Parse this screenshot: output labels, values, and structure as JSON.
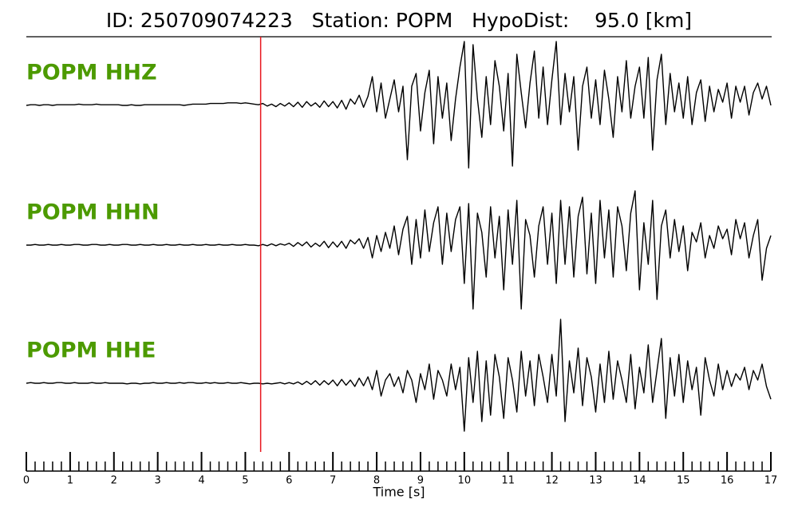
{
  "chart_data": {
    "type": "line",
    "title": "ID: 250709074223   Station: POPM   HypoDist:    95.0 [km]",
    "xlabel": "Time [s]",
    "x": [
      0,
      0.1,
      0.2,
      0.3,
      0.4,
      0.5,
      0.6,
      0.7,
      0.8,
      0.9,
      1,
      1.1,
      1.2,
      1.3,
      1.4,
      1.5,
      1.6,
      1.7,
      1.8,
      1.9,
      2,
      2.1,
      2.2,
      2.3,
      2.4,
      2.5,
      2.6,
      2.7,
      2.8,
      2.9,
      3,
      3.1,
      3.2,
      3.3,
      3.4,
      3.5,
      3.6,
      3.7,
      3.8,
      3.9,
      4,
      4.1,
      4.2,
      4.3,
      4.4,
      4.5,
      4.6,
      4.7,
      4.8,
      4.9,
      5,
      5.1,
      5.2,
      5.3,
      5.4,
      5.5,
      5.6,
      5.7,
      5.8,
      5.9,
      6,
      6.1,
      6.2,
      6.3,
      6.4,
      6.5,
      6.6,
      6.7,
      6.8,
      6.9,
      7,
      7.1,
      7.2,
      7.3,
      7.4,
      7.5,
      7.6,
      7.7,
      7.8,
      7.9,
      8,
      8.1,
      8.2,
      8.3,
      8.4,
      8.5,
      8.6,
      8.7,
      8.8,
      8.9,
      9,
      9.1,
      9.2,
      9.3,
      9.4,
      9.5,
      9.6,
      9.7,
      9.8,
      9.9,
      10,
      10.1,
      10.2,
      10.3,
      10.4,
      10.5,
      10.6,
      10.7,
      10.8,
      10.9,
      11,
      11.1,
      11.2,
      11.3,
      11.4,
      11.5,
      11.6,
      11.7,
      11.8,
      11.9,
      12,
      12.1,
      12.2,
      12.3,
      12.4,
      12.5,
      12.6,
      12.7,
      12.8,
      12.9,
      13,
      13.1,
      13.2,
      13.3,
      13.4,
      13.5,
      13.6,
      13.7,
      13.8,
      13.9,
      14,
      14.1,
      14.2,
      14.3,
      14.4,
      14.5,
      14.6,
      14.7,
      14.8,
      14.9,
      15,
      15.1,
      15.2,
      15.3,
      15.4,
      15.5,
      15.6,
      15.7,
      15.8,
      15.9,
      16,
      16.1,
      16.2,
      16.3,
      16.4,
      16.5,
      16.6,
      16.7,
      16.8,
      16.9,
      17
    ],
    "series": [
      {
        "name": "POPM HHZ",
        "color": "#000000",
        "label_color": "#4c9a00",
        "values": [
          0,
          0.01,
          0.01,
          0,
          0.01,
          0.01,
          0,
          0.01,
          0.01,
          0.01,
          0.01,
          0.01,
          0.02,
          0.01,
          0.01,
          0.01,
          0.02,
          0.01,
          0.01,
          0.01,
          0.01,
          0.01,
          0,
          0,
          0.01,
          0,
          0,
          0.01,
          0.01,
          0.01,
          0.01,
          0.01,
          0.01,
          0.01,
          0.01,
          0.01,
          0,
          0.01,
          0.02,
          0.02,
          0.02,
          0.02,
          0.03,
          0.03,
          0.03,
          0.03,
          0.04,
          0.04,
          0.04,
          0.03,
          0.04,
          0.03,
          0.02,
          0.01,
          0.03,
          -0.01,
          0.02,
          -0.02,
          0.03,
          -0.01,
          0.04,
          -0.02,
          0.05,
          -0.03,
          0.06,
          -0.01,
          0.04,
          -0.03,
          0.07,
          -0.02,
          0.06,
          -0.04,
          0.08,
          -0.06,
          0.1,
          0.02,
          0.16,
          -0.03,
          0.14,
          0.45,
          -0.1,
          0.35,
          -0.2,
          0.1,
          0.4,
          -0.1,
          0.3,
          -0.85,
          0.3,
          0.5,
          -0.4,
          0.2,
          0.55,
          -0.6,
          0.45,
          -0.2,
          0.35,
          -0.55,
          0.1,
          0.6,
          1.0,
          -0.98,
          0.95,
          0.1,
          -0.5,
          0.45,
          -0.3,
          0.7,
          0.3,
          -0.4,
          0.5,
          -0.95,
          0.8,
          0.2,
          -0.35,
          0.35,
          0.85,
          -0.2,
          0.6,
          -0.3,
          0.4,
          1.0,
          -0.3,
          0.5,
          -0.1,
          0.45,
          -0.7,
          0.3,
          0.6,
          -0.2,
          0.4,
          -0.3,
          0.55,
          0.1,
          -0.5,
          0.45,
          -0.1,
          0.7,
          -0.2,
          0.3,
          0.6,
          -0.2,
          0.75,
          -0.7,
          0.4,
          0.8,
          -0.3,
          0.5,
          -0.1,
          0.35,
          -0.2,
          0.45,
          -0.3,
          0.2,
          0.4,
          -0.25,
          0.3,
          -0.1,
          0.25,
          0.05,
          0.35,
          -0.2,
          0.3,
          0.05,
          0.3,
          -0.15,
          0.2,
          0.35,
          0.1,
          0.3,
          0
        ]
      },
      {
        "name": "POPM HHN",
        "color": "#000000",
        "label_color": "#4c9a00",
        "values": [
          0,
          0,
          0.01,
          0,
          0,
          0.01,
          0,
          0,
          0.01,
          0,
          0,
          0.01,
          0.01,
          0,
          0,
          0.01,
          0.01,
          0,
          0,
          0.01,
          0,
          0,
          0.01,
          0.01,
          0,
          0,
          0.01,
          0,
          0,
          0.01,
          0,
          0,
          0.01,
          0,
          0,
          0.01,
          0,
          0,
          0.01,
          0,
          0,
          0.01,
          0,
          0,
          0.01,
          0,
          0,
          0.01,
          0,
          0,
          0.01,
          0,
          0,
          -0.01,
          0.01,
          -0.01,
          0.02,
          -0.01,
          0.02,
          0,
          0.03,
          -0.02,
          0.04,
          -0.01,
          0.05,
          -0.03,
          0.03,
          -0.02,
          0.06,
          -0.04,
          0.05,
          -0.03,
          0.06,
          -0.05,
          0.08,
          0.02,
          0.1,
          -0.05,
          0.12,
          -0.2,
          0.15,
          -0.1,
          0.2,
          -0.05,
          0.3,
          -0.15,
          0.25,
          0.45,
          -0.3,
          0.4,
          -0.2,
          0.55,
          -0.1,
          0.35,
          0.6,
          -0.3,
          0.5,
          -0.1,
          0.4,
          0.6,
          -0.6,
          0.65,
          -1.0,
          0.5,
          0.2,
          -0.5,
          0.6,
          -0.2,
          0.45,
          -0.7,
          0.55,
          -0.3,
          0.7,
          -1.0,
          0.4,
          0.15,
          -0.5,
          0.3,
          0.6,
          -0.3,
          0.5,
          -0.6,
          0.7,
          -0.3,
          0.6,
          -0.5,
          0.45,
          0.75,
          -0.45,
          0.5,
          -0.6,
          0.7,
          -0.2,
          0.55,
          -0.5,
          0.6,
          0.3,
          -0.4,
          0.5,
          0.85,
          -0.7,
          0.35,
          -0.3,
          0.7,
          -0.85,
          0.3,
          0.55,
          -0.2,
          0.4,
          -0.1,
          0.3,
          -0.4,
          0.2,
          0.05,
          0.35,
          -0.2,
          0.15,
          -0.05,
          0.3,
          0.1,
          0.25,
          -0.15,
          0.4,
          0.1,
          0.35,
          -0.2,
          0.15,
          0.4,
          -0.55,
          -0.05,
          0.15
        ]
      },
      {
        "name": "POPM HHE",
        "color": "#000000",
        "label_color": "#4c9a00",
        "values": [
          0,
          0.01,
          0,
          0,
          0.01,
          0,
          0,
          0.01,
          0.01,
          0,
          0,
          0.01,
          0,
          0,
          0,
          0.01,
          0,
          0,
          0.01,
          0,
          0,
          0,
          0,
          -0.01,
          0,
          0,
          -0.01,
          0,
          0,
          0.01,
          0,
          0,
          0.01,
          0,
          0,
          0.01,
          0,
          0.01,
          0.01,
          0,
          0,
          0.01,
          0,
          0.01,
          0,
          0,
          0.01,
          0,
          0,
          0.01,
          0,
          -0.01,
          0,
          0,
          -0.01,
          0,
          -0.01,
          0,
          0.01,
          -0.01,
          0.01,
          -0.01,
          0.02,
          -0.02,
          0.03,
          -0.02,
          0.04,
          -0.03,
          0.04,
          -0.02,
          0.05,
          -0.04,
          0.06,
          -0.03,
          0.05,
          -0.05,
          0.08,
          -0.04,
          0.1,
          -0.1,
          0.2,
          -0.2,
          0.05,
          0.15,
          -0.05,
          0.1,
          -0.15,
          0.2,
          0.05,
          -0.3,
          0.15,
          -0.1,
          0.3,
          -0.25,
          0.2,
          0.05,
          -0.2,
          0.3,
          -0.1,
          0.25,
          -0.75,
          0.4,
          -0.3,
          0.5,
          -0.6,
          0.35,
          -0.5,
          0.45,
          0.1,
          -0.55,
          0.4,
          0.05,
          -0.45,
          0.5,
          -0.2,
          0.35,
          -0.35,
          0.45,
          0.1,
          -0.3,
          0.45,
          -0.2,
          1.0,
          -0.6,
          0.35,
          -0.15,
          0.55,
          -0.35,
          0.4,
          0.1,
          -0.45,
          0.3,
          -0.3,
          0.5,
          -0.25,
          0.35,
          0.05,
          -0.3,
          0.45,
          -0.4,
          0.25,
          -0.15,
          0.6,
          -0.3,
          0.2,
          0.7,
          -0.55,
          0.4,
          -0.2,
          0.45,
          -0.3,
          0.35,
          -0.1,
          0.25,
          -0.5,
          0.4,
          0.05,
          -0.2,
          0.3,
          -0.1,
          0.2,
          -0.05,
          0.15,
          0.05,
          0.25,
          -0.1,
          0.2,
          0.05,
          0.3,
          -0.05,
          -0.25
        ]
      }
    ],
    "ylim": [
      -1,
      1
    ],
    "xlim": [
      0,
      17
    ],
    "xticks": [
      0,
      1,
      2,
      3,
      4,
      5,
      6,
      7,
      8,
      9,
      10,
      11,
      12,
      13,
      14,
      15,
      16,
      17
    ],
    "xminor": 0.2,
    "vline": 5.35,
    "vline_color": "#e8141c"
  }
}
